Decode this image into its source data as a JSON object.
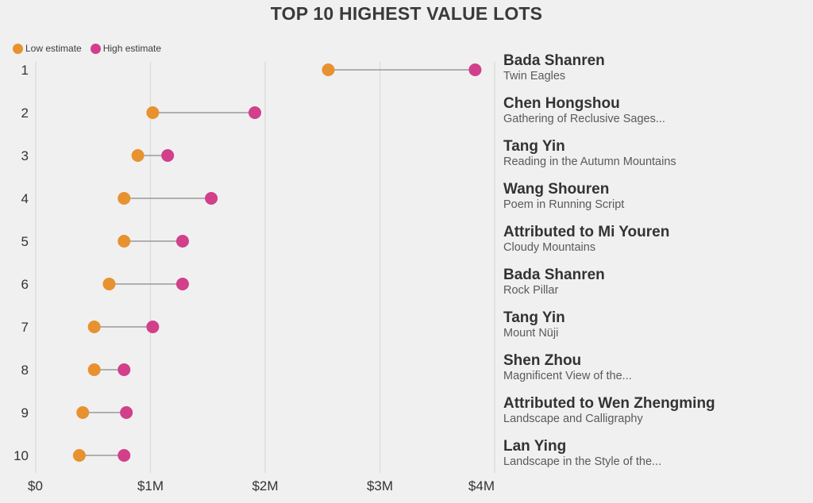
{
  "chart_data": {
    "type": "dumbbell",
    "title": "TOP 10 HIGHEST VALUE LOTS",
    "legend": {
      "placement": "top-left",
      "items": [
        {
          "name": "Low estimate",
          "color": "#e8912f"
        },
        {
          "name": "High estimate",
          "color": "#d23f8a"
        }
      ]
    },
    "x_axis": {
      "ticks": [
        0,
        1000000,
        2000000,
        3000000,
        4000000
      ],
      "tick_labels": [
        "$0",
        "$1M",
        "$2M",
        "$3M",
        "$4M"
      ],
      "range": [
        0,
        4000000
      ],
      "grid": true
    },
    "rows": [
      {
        "rank": "1",
        "artist": "Bada Shanren",
        "work": "Twin Eagles",
        "low": 2550000,
        "high": 3830000
      },
      {
        "rank": "2",
        "artist": "Chen Hongshou",
        "work": "Gathering of Reclusive Sages...",
        "low": 1020000,
        "high": 1910000
      },
      {
        "rank": "3",
        "artist": "Tang Yin",
        "work": "Reading in the Autumn Mountains",
        "low": 890000,
        "high": 1150000
      },
      {
        "rank": "4",
        "artist": "Wang Shouren",
        "work": "Poem in Running Script",
        "low": 770000,
        "high": 1530000
      },
      {
        "rank": "5",
        "artist": "Attributed to Mi Youren",
        "work": "Cloudy Mountains",
        "low": 770000,
        "high": 1280000
      },
      {
        "rank": "6",
        "artist": "Bada Shanren",
        "work": "Rock Pillar",
        "low": 640000,
        "high": 1280000
      },
      {
        "rank": "7",
        "artist": "Tang Yin",
        "work": "Mount Nüji",
        "low": 510000,
        "high": 1020000
      },
      {
        "rank": "8",
        "artist": "Shen Zhou",
        "work": "Magnificent View of the...",
        "low": 510000,
        "high": 770000
      },
      {
        "rank": "9",
        "artist": "Attributed to Wen Zhengming",
        "work": "Landscape and Calligraphy",
        "low": 410000,
        "high": 790000
      },
      {
        "rank": "10",
        "artist": "Lan Ying",
        "work": "Landscape in the Style of the...",
        "low": 380000,
        "high": 770000
      }
    ]
  },
  "colors": {
    "background": "#f0f0f0",
    "gridline": "#dddddd",
    "connector": "#888888",
    "text": "#333333"
  }
}
